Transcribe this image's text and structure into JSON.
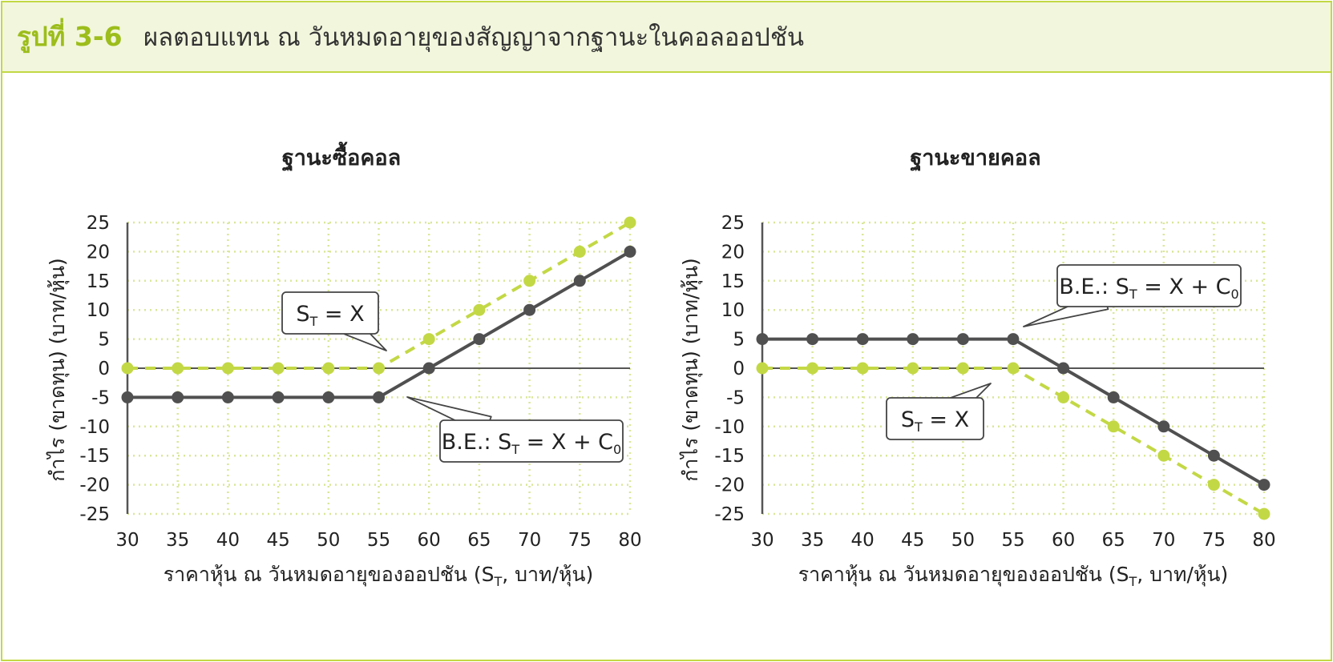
{
  "figure": {
    "label": "รูปที่ 3-6",
    "title": "ผลตอบแทน ณ วันหมดอายุของสัญญาจากฐานะในคอลออปชัน"
  },
  "colors": {
    "accent": "#9cbd1b",
    "border": "#c3d845",
    "header_bg": "#f2f6dc",
    "series_dark": "#505050",
    "series_green": "#c3d845",
    "grid": "#d9e79a"
  },
  "chart_data": [
    {
      "type": "line",
      "title": "ฐานะซื้อคอล",
      "xlabel": "ราคาหุ้น ณ วันหมดอายุของออปชัน (S",
      "xlabel_sub": "T",
      "xlabel_end": ", บาท/หุ้น)",
      "ylabel": "กำไร (ขาดทุน) (บาท/หุ้น)",
      "x": [
        30,
        35,
        40,
        45,
        50,
        55,
        60,
        65,
        70,
        75,
        80
      ],
      "xlim": [
        30,
        80
      ],
      "ylim": [
        -25,
        25
      ],
      "yticks": [
        25,
        20,
        15,
        10,
        5,
        0,
        -5,
        -10,
        -15,
        -20,
        -25
      ],
      "grid": true,
      "series": [
        {
          "values": [
            0,
            0,
            0,
            0,
            0,
            0,
            5,
            10,
            15,
            20,
            25
          ],
          "color": "#c3d845",
          "style": "dashed"
        },
        {
          "values": [
            -5,
            -5,
            -5,
            -5,
            -5,
            -5,
            0,
            5,
            10,
            15,
            20
          ],
          "color": "#505050",
          "style": "solid"
        }
      ],
      "annotations": [
        {
          "main": "S",
          "sub": "T",
          "tail": " = X",
          "at": [
            55,
            0
          ]
        },
        {
          "main": "B.E.: S",
          "sub": "T",
          "tail": " = X + C",
          "sub2": "0",
          "at": [
            57,
            -3
          ]
        }
      ]
    },
    {
      "type": "line",
      "title": "ฐานะขายคอล",
      "xlabel": "ราคาหุ้น ณ วันหมดอายุของออปชัน (S",
      "xlabel_sub": "T",
      "xlabel_end": ", บาท/หุ้น)",
      "ylabel": "กำไร (ขาดทุน) (บาท/หุ้น)",
      "x": [
        30,
        35,
        40,
        45,
        50,
        55,
        60,
        65,
        70,
        75,
        80
      ],
      "xlim": [
        30,
        80
      ],
      "ylim": [
        -25,
        25
      ],
      "yticks": [
        25,
        20,
        15,
        10,
        5,
        0,
        -5,
        -10,
        -15,
        -20,
        -25
      ],
      "grid": true,
      "series": [
        {
          "values": [
            0,
            0,
            0,
            0,
            0,
            0,
            -5,
            -10,
            -15,
            -20,
            -25
          ],
          "color": "#c3d845",
          "style": "dashed"
        },
        {
          "values": [
            5,
            5,
            5,
            5,
            5,
            5,
            0,
            -5,
            -10,
            -15,
            -20
          ],
          "color": "#505050",
          "style": "solid"
        }
      ],
      "annotations": [
        {
          "main": "B.E.: S",
          "sub": "T",
          "tail": " = X + C",
          "sub2": "0",
          "at": [
            56,
            7
          ]
        },
        {
          "main": "S",
          "sub": "T",
          "tail": " = X",
          "at": [
            53,
            -3
          ]
        }
      ]
    }
  ]
}
